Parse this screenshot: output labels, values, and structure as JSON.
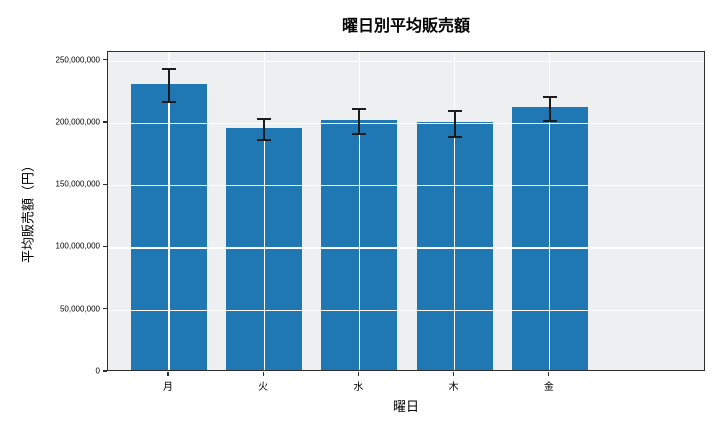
{
  "chart_data": {
    "type": "bar",
    "title": "曜日別平均販売額",
    "xlabel": "曜日",
    "ylabel": "平均販売額（円）",
    "categories": [
      "月",
      "火",
      "水",
      "木",
      "金"
    ],
    "categories_en": [
      "mon",
      "tue",
      "wed",
      "thu",
      "fri"
    ],
    "values": [
      230000000,
      194500000,
      201000000,
      199500000,
      211000000
    ],
    "errors": [
      13500000,
      8500000,
      10000000,
      10400000,
      9600000
    ],
    "yticks": [
      0,
      50000000,
      100000000,
      150000000,
      200000000,
      250000000
    ],
    "ytick_labels": [
      "0",
      "50,000,000",
      "100,000,000",
      "150,000,000",
      "200,000,000",
      "250,000,000"
    ],
    "ylim": [
      0,
      257000000
    ],
    "grid": "on",
    "legend": "none",
    "colors": {
      "bar": "#1f77b4",
      "plot_background": "#eeeff0",
      "figure_background": "#ffffff",
      "grid": "#ffffff",
      "spine": "#2e2e2e",
      "error_bar": "#1c1c1c",
      "text": "#000000"
    }
  }
}
